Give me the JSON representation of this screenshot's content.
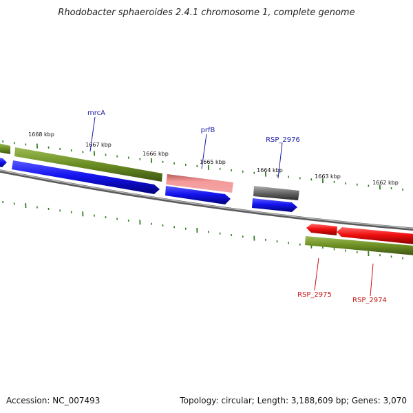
{
  "title": "Rhodobacter sphaeroides 2.4.1 chromosome 1, complete genome",
  "footer": {
    "accession": "Accession: NC_007493",
    "summary": "Topology: circular; Length: 3,188,609 bp; Genes: 3,070"
  },
  "colors": {
    "backbone": "#8a8a8a",
    "tick": "#2e7d1e",
    "gene_box": "#6b8e23",
    "cds_forward": "#1010e0",
    "cds_reverse": "#ee0a0a",
    "rna": "#f08a8a",
    "pseudo": "#606060",
    "label_forward": "#1a1aa8",
    "label_reverse": "#c41010"
  },
  "ruler_labels": [
    "1668 kbp",
    "1667 kbp",
    "1666 kbp",
    "1665 kbp",
    "1664 kbp",
    "1663 kbp",
    "1662 kbp"
  ],
  "gene_labels": {
    "mrcA": "mrcA",
    "prfB": "prfB",
    "rsp2976": "RSP_2976",
    "rsp2975": "RSP_2975",
    "rsp2974": "RSP_2974"
  }
}
